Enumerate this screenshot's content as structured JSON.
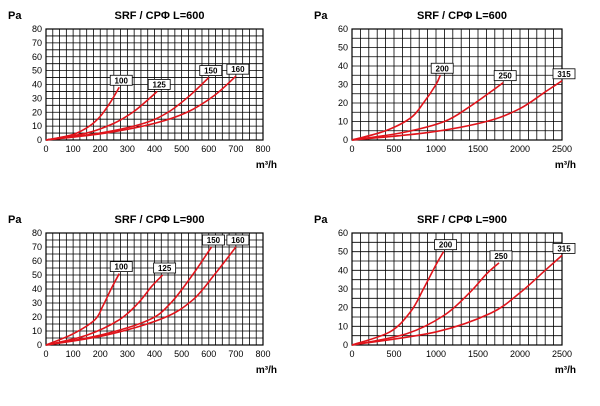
{
  "colors": {
    "curve": "#e0141b",
    "grid": "#000000",
    "axis": "#000000",
    "background": "#ffffff"
  },
  "chart_data": [
    {
      "type": "line",
      "title": "SRF / CPΦ  L=600",
      "ylabel": "Pa",
      "xlabel": "m³/h",
      "xlim": [
        0,
        800
      ],
      "ylim": [
        0,
        80
      ],
      "xticks": [
        "0",
        "100",
        "200",
        "300",
        "400",
        "500",
        "600",
        "700",
        "800"
      ],
      "yticks": [
        "0",
        "10",
        "20",
        "30",
        "40",
        "50",
        "60",
        "70",
        "80"
      ],
      "grid": true,
      "series": [
        {
          "name": "100",
          "x": [
            0,
            100,
            160,
            200,
            240,
            270
          ],
          "y": [
            0,
            4,
            10,
            17,
            28,
            38
          ]
        },
        {
          "name": "125",
          "x": [
            0,
            150,
            250,
            320,
            370,
            410
          ],
          "y": [
            0,
            5,
            12,
            20,
            28,
            35
          ]
        },
        {
          "name": "150",
          "x": [
            0,
            200,
            360,
            450,
            530,
            600
          ],
          "y": [
            0,
            5,
            12,
            20,
            32,
            45
          ]
        },
        {
          "name": "160",
          "x": [
            0,
            220,
            400,
            520,
            620,
            700
          ],
          "y": [
            0,
            5,
            12,
            20,
            32,
            46
          ]
        }
      ]
    },
    {
      "type": "line",
      "title": "SRF / CPΦ  L=600",
      "ylabel": "Pa",
      "xlabel": "m³/h",
      "xlim": [
        0,
        2500
      ],
      "ylim": [
        0,
        60
      ],
      "xticks": [
        "0",
        "500",
        "1000",
        "1500",
        "2000",
        "2500"
      ],
      "yticks": [
        "0",
        "10",
        "20",
        "30",
        "40",
        "50",
        "60"
      ],
      "grid": true,
      "series": [
        {
          "name": "200",
          "x": [
            0,
            400,
            700,
            850,
            1000,
            1050
          ],
          "y": [
            0,
            5,
            12,
            20,
            30,
            35
          ]
        },
        {
          "name": "250",
          "x": [
            0,
            600,
            1100,
            1400,
            1650,
            1800
          ],
          "y": [
            0,
            4,
            10,
            18,
            26,
            31
          ]
        },
        {
          "name": "315",
          "x": [
            0,
            900,
            1600,
            2000,
            2300,
            2500
          ],
          "y": [
            0,
            4,
            10,
            17,
            26,
            32
          ]
        }
      ]
    },
    {
      "type": "line",
      "title": "SRF / CPΦ  L=900",
      "ylabel": "Pa",
      "xlabel": "m³/h",
      "xlim": [
        0,
        800
      ],
      "ylim": [
        0,
        80
      ],
      "xticks": [
        "0",
        "100",
        "200",
        "300",
        "400",
        "500",
        "600",
        "700",
        "800"
      ],
      "yticks": [
        "0",
        "10",
        "20",
        "30",
        "40",
        "50",
        "60",
        "70",
        "80"
      ],
      "grid": true,
      "series": [
        {
          "name": "100",
          "x": [
            0,
            100,
            180,
            210,
            240,
            270
          ],
          "y": [
            0,
            8,
            18,
            28,
            40,
            51
          ]
        },
        {
          "name": "125",
          "x": [
            0,
            150,
            270,
            340,
            390,
            430
          ],
          "y": [
            0,
            7,
            18,
            30,
            42,
            50
          ]
        },
        {
          "name": "150",
          "x": [
            0,
            200,
            380,
            460,
            540,
            610
          ],
          "y": [
            0,
            7,
            18,
            30,
            50,
            70
          ]
        },
        {
          "name": "160",
          "x": [
            0,
            220,
            430,
            540,
            620,
            700
          ],
          "y": [
            0,
            7,
            19,
            32,
            50,
            70
          ]
        }
      ]
    },
    {
      "type": "line",
      "title": "SRF / CPΦ  L=900",
      "ylabel": "Pa",
      "xlabel": "m³/h",
      "xlim": [
        0,
        2500
      ],
      "ylim": [
        0,
        60
      ],
      "xticks": [
        "0",
        "500",
        "1000",
        "1500",
        "2000",
        "2500"
      ],
      "yticks": [
        "0",
        "10",
        "20",
        "30",
        "40",
        "50",
        "60"
      ],
      "grid": true,
      "series": [
        {
          "name": "200",
          "x": [
            0,
            450,
            700,
            850,
            1000,
            1090
          ],
          "y": [
            0,
            7,
            18,
            30,
            43,
            50
          ]
        },
        {
          "name": "250",
          "x": [
            0,
            650,
            1100,
            1400,
            1600,
            1750
          ],
          "y": [
            0,
            6,
            16,
            28,
            38,
            44
          ]
        },
        {
          "name": "315",
          "x": [
            0,
            1000,
            1650,
            2000,
            2300,
            2500
          ],
          "y": [
            0,
            7,
            17,
            28,
            40,
            48
          ]
        }
      ]
    }
  ]
}
